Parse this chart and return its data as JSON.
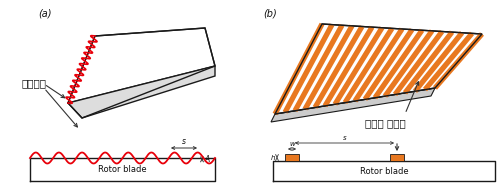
{
  "bg_color": "#ffffff",
  "panel_a_label": "(a)",
  "panel_b_label": "(b)",
  "korean_a": "선단돌기",
  "korean_b": "종방향 스트립",
  "rotor_blade": "Rotor blade",
  "dim_s": "s",
  "dim_a": "A",
  "dim_w": "w",
  "dim_h": "h",
  "wave_color": "#e8000a",
  "orange_color": "#e87820",
  "blade_outline_color": "#1a1a1a",
  "text_color": "#111111",
  "annotation_color": "#333333"
}
